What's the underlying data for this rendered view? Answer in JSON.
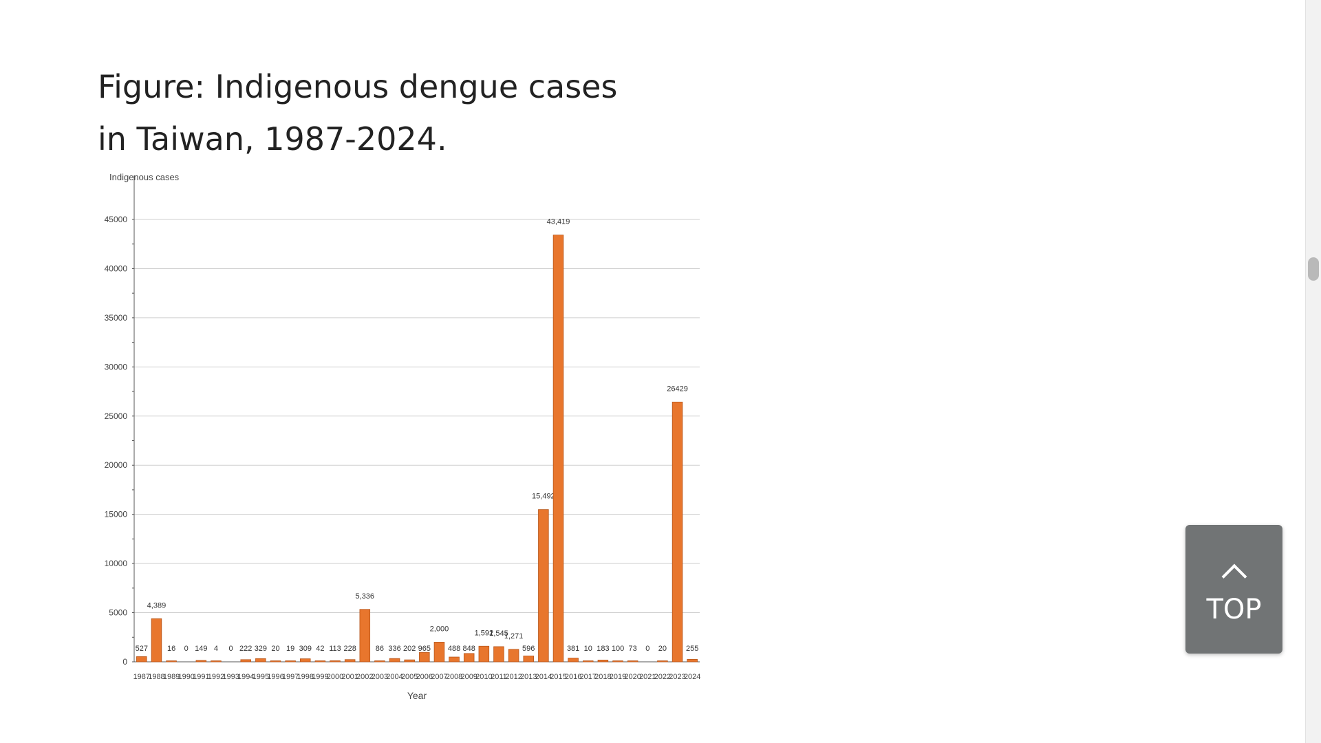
{
  "page": {
    "title": "Figure: Indigenous dengue cases in Taiwan, 1987-2024."
  },
  "top_button": {
    "label": "TOP",
    "icon": "chevron-up-icon"
  },
  "colors": {
    "bar": "#E8762D",
    "bar_edge": "#B6561B",
    "grid": "#cfcfcf",
    "axis": "#555555"
  },
  "chart_data": {
    "type": "bar",
    "title": "",
    "xlabel": "Year",
    "ylabel": "Indigenous cases",
    "ylim": [
      0,
      45000
    ],
    "yticks": [
      "0",
      "5000",
      "10000",
      "15000",
      "20000",
      "25000",
      "30000",
      "35000",
      "40000",
      "45000"
    ],
    "grid": true,
    "categories": [
      "1987",
      "1988",
      "1989",
      "1990",
      "1991",
      "1992",
      "1993",
      "1994",
      "1995",
      "1996",
      "1997",
      "1998",
      "1999",
      "2000",
      "2001",
      "2002",
      "2003",
      "2004",
      "2005",
      "2006",
      "2007",
      "2008",
      "2009",
      "2010",
      "2011",
      "2012",
      "2013",
      "2014",
      "2015",
      "2016",
      "2017",
      "2018",
      "2019",
      "2020",
      "2021",
      "2022",
      "2023",
      "2024"
    ],
    "values": [
      527,
      4389,
      16,
      0,
      149,
      4,
      0,
      222,
      329,
      20,
      19,
      309,
      42,
      113,
      228,
      5336,
      86,
      336,
      202,
      965,
      2000,
      488,
      848,
      1592,
      1545,
      1271,
      596,
      15492,
      43419,
      381,
      10,
      183,
      100,
      73,
      0,
      20,
      26429,
      255
    ],
    "labels": [
      "527",
      "4,389",
      "16",
      "0",
      "149",
      "4",
      "0",
      "222",
      "329",
      "20",
      "19",
      "309",
      "42",
      "113",
      "228",
      "5,336",
      "86",
      "336",
      "202",
      "965",
      "2,000",
      "488",
      "848",
      "1,592",
      "1,545",
      "1,271",
      "596",
      "15,492",
      "43,419",
      "381",
      "10",
      "183",
      "100",
      "73",
      "0",
      "20",
      "26429",
      "255"
    ]
  }
}
